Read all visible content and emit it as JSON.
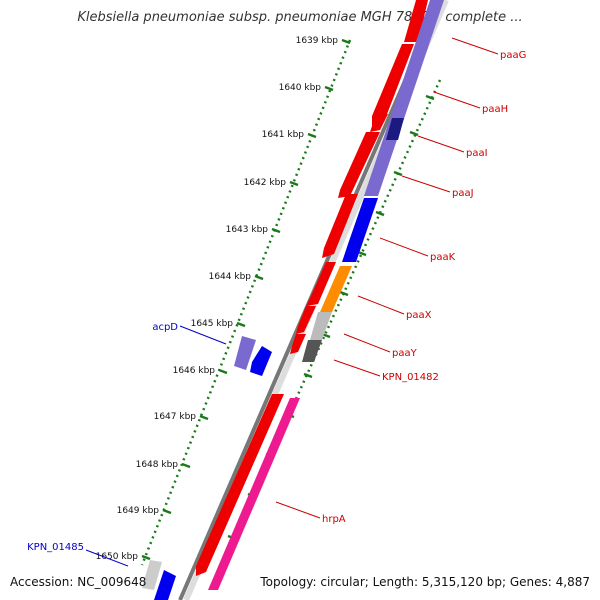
{
  "title": "Klebsiella pneumoniae subsp. pneumoniae MGH 78578, complete ...",
  "accession": "Accession: NC_009648",
  "topology": "Topology: circular; Length: 5,315,120 bp; Genes: 4,887",
  "colors": {
    "backbone": "#888888",
    "ruler": "#1a7a1a",
    "gene_label_red": "#cc0000",
    "gene_label_blue": "#0000cc"
  },
  "ruler_ticks": [
    "1639 kbp",
    "1640 kbp",
    "1641 kbp",
    "1642 kbp",
    "1643 kbp",
    "1644 kbp",
    "1645 kbp",
    "1646 kbp",
    "1647 kbp",
    "1648 kbp",
    "1649 kbp",
    "1650 kbp"
  ],
  "gene_labels": [
    {
      "name": "paaG",
      "color": "red"
    },
    {
      "name": "paaH",
      "color": "red"
    },
    {
      "name": "paaI",
      "color": "red"
    },
    {
      "name": "paaJ",
      "color": "red"
    },
    {
      "name": "paaK",
      "color": "red"
    },
    {
      "name": "paaX",
      "color": "red"
    },
    {
      "name": "paaY",
      "color": "red"
    },
    {
      "name": "KPN_01482",
      "color": "red"
    },
    {
      "name": "hrpA",
      "color": "red"
    },
    {
      "name": "acpD",
      "color": "blue"
    },
    {
      "name": "KPN_01485",
      "color": "blue"
    }
  ]
}
